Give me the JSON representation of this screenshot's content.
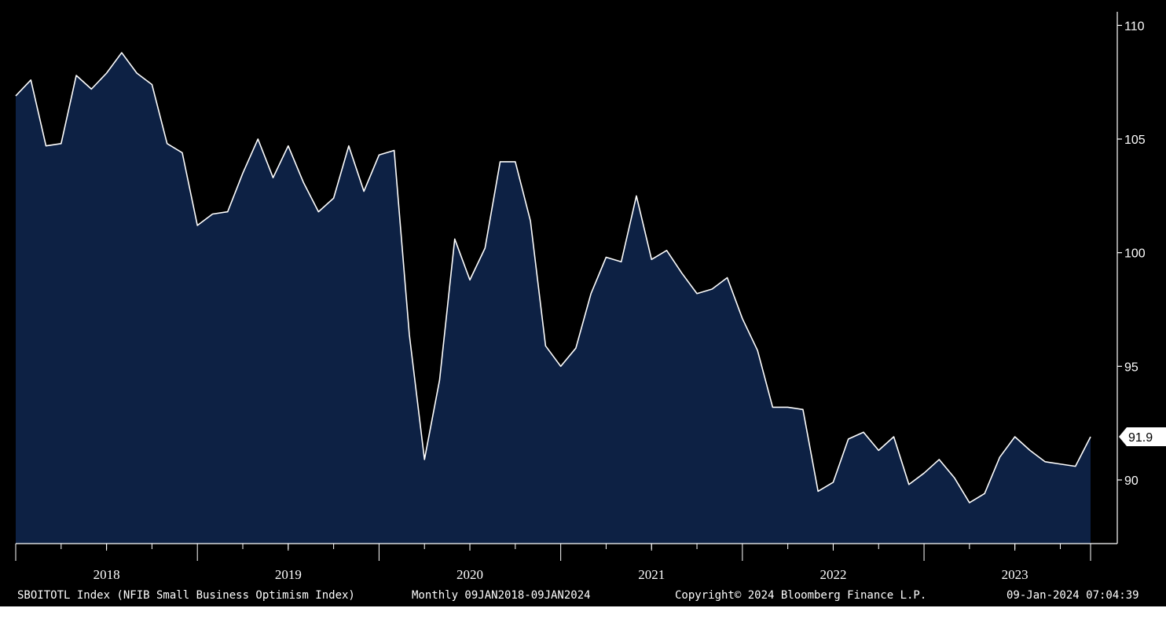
{
  "chart_data": {
    "type": "area",
    "title": "",
    "xlabel": "",
    "ylabel": "",
    "ylim": [
      87.2,
      110.6
    ],
    "y_ticks": [
      "110",
      "105",
      "100",
      "95",
      "90"
    ],
    "y_tick_values": [
      110,
      105,
      100,
      95,
      90
    ],
    "years": [
      "2018",
      "2019",
      "2020",
      "2021",
      "2022",
      "2023"
    ],
    "x_start": "2018-01",
    "x_end": "2023-12",
    "grid": false,
    "colors": {
      "background": "#000000",
      "fill": "#0d2144",
      "line": "#ffffff",
      "axis": "#ffffff"
    },
    "last_value_label": "91.9",
    "series": [
      {
        "values": [
          106.9,
          107.6,
          104.7,
          104.8,
          107.8,
          107.2,
          107.9,
          108.8,
          107.9,
          107.4,
          104.8,
          104.4,
          101.2,
          101.7,
          101.8,
          103.5,
          105.0,
          103.3,
          104.7,
          103.1,
          101.8,
          102.4,
          104.7,
          102.7,
          104.3,
          104.5,
          96.4,
          90.9,
          94.4,
          100.6,
          98.8,
          100.2,
          104.0,
          104.0,
          101.4,
          95.9,
          95.0,
          95.8,
          98.2,
          99.8,
          99.6,
          102.5,
          99.7,
          100.1,
          99.1,
          98.2,
          98.4,
          98.9,
          97.1,
          95.7,
          93.2,
          93.2,
          93.1,
          89.5,
          89.9,
          91.8,
          92.1,
          91.3,
          91.9,
          89.8,
          90.3,
          90.9,
          90.1,
          89.0,
          89.4,
          91.0,
          91.9,
          91.3,
          90.8,
          90.7,
          90.6,
          91.9
        ]
      }
    ]
  },
  "footer": {
    "ticker": "SBOITOTL Index (NFIB Small Business Optimism Index)",
    "range": "Monthly 09JAN2018-09JAN2024",
    "copyright": "Copyright© 2024 Bloomberg Finance L.P.",
    "timestamp": "09-Jan-2024 07:04:39"
  }
}
